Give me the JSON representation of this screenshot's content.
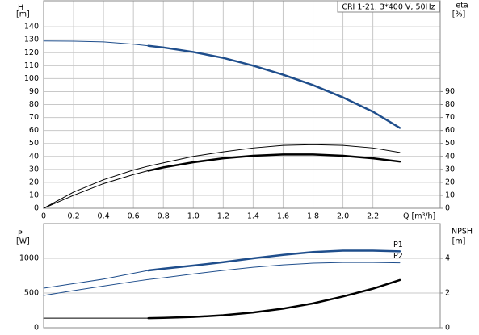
{
  "chart_data": [
    {
      "type": "line",
      "title": "CRI 1-21, 3*400 V, 50Hz",
      "y_label": "H",
      "y_unit": "[m]",
      "y2_label": "eta",
      "y2_unit": "[%]",
      "x_label": "Q [m³/h]",
      "x": [
        0,
        0.2,
        0.4,
        0.6,
        0.7,
        0.8,
        1.0,
        1.2,
        1.4,
        1.6,
        1.8,
        2.0,
        2.2,
        2.38
      ],
      "xlim": [
        0,
        2.65
      ],
      "xticks": [
        0,
        0.2,
        0.4,
        0.6,
        0.8,
        {
          "value": 1,
          "label": "1.0"
        },
        1.2,
        1.4,
        1.6,
        1.8,
        {
          "value": 2,
          "label": "2.0"
        },
        2.2
      ],
      "ylim": [
        0,
        160
      ],
      "yticks": [
        0,
        10,
        20,
        30,
        40,
        50,
        60,
        70,
        80,
        90,
        100,
        110,
        120,
        130,
        140
      ],
      "y2lim": [
        0,
        160
      ],
      "y2ticks": [
        0,
        10,
        20,
        30,
        40,
        50,
        60,
        70,
        80,
        90
      ],
      "grid": true,
      "series": [
        {
          "color": "#1f4e8c",
          "line_width": 1,
          "values": [
            129,
            128.9,
            128.3,
            126.5,
            125.3,
            null,
            null,
            null,
            null,
            null,
            null,
            null,
            null,
            null
          ]
        },
        {
          "color": "#1f4e8c",
          "line_width": 2.5,
          "values": [
            null,
            null,
            null,
            null,
            125.3,
            124,
            120.5,
            116,
            110,
            103,
            95,
            85.5,
            74.5,
            62
          ]
        },
        {
          "color": "#000000",
          "line_width": 1,
          "axis": "y2",
          "values": [
            0,
            12.5,
            22,
            29.5,
            32.5,
            35,
            40,
            43.5,
            46.5,
            48.5,
            49,
            48.5,
            46.5,
            43
          ]
        },
        {
          "color": "#000000",
          "line_width": 1,
          "axis": "y2",
          "values": [
            0,
            10,
            19,
            26,
            29,
            null,
            null,
            null,
            null,
            null,
            null,
            null,
            null,
            null
          ]
        },
        {
          "color": "#000000",
          "line_width": 2.5,
          "axis": "y2",
          "values": [
            null,
            null,
            null,
            null,
            29,
            31.5,
            35.5,
            38.5,
            40.5,
            41.5,
            41.5,
            40.5,
            38.5,
            36
          ]
        }
      ]
    },
    {
      "type": "line",
      "y_label": "P",
      "y_unit": "[W]",
      "y2_label": "NPSH",
      "y2_unit": "[m]",
      "x": [
        0,
        0.2,
        0.4,
        0.6,
        0.7,
        0.8,
        1.0,
        1.2,
        1.4,
        1.6,
        1.8,
        2.0,
        2.2,
        2.38
      ],
      "xlim": [
        0,
        2.65
      ],
      "ylim": [
        0,
        1500
      ],
      "yticks": [
        0,
        500,
        1000
      ],
      "y2lim": [
        0,
        6
      ],
      "y2ticks": [
        0,
        2,
        4
      ],
      "grid": true,
      "series": [
        {
          "color": "#1f4e8c",
          "line_width": 1,
          "values": [
            570,
            635,
            700,
            785,
            825,
            null,
            null,
            null,
            null,
            null,
            null,
            null,
            null,
            null
          ]
        },
        {
          "name": "P1",
          "color": "#1f4e8c",
          "line_width": 2.5,
          "values": [
            null,
            null,
            null,
            null,
            825,
            850,
            895,
            945,
            1000,
            1050,
            1090,
            1110,
            1110,
            1100
          ]
        },
        {
          "name": "P2",
          "color": "#1f4e8c",
          "line_width": 1,
          "values": [
            465,
            535,
            600,
            665,
            695,
            720,
            775,
            825,
            870,
            905,
            930,
            940,
            940,
            935
          ]
        },
        {
          "color": "#000000",
          "line_width": 1,
          "axis": "y2",
          "values": [
            0.55,
            0.55,
            0.55,
            0.55,
            0.55,
            null,
            null,
            null,
            null,
            null,
            null,
            null,
            null,
            null
          ]
        },
        {
          "color": "#000000",
          "line_width": 2.5,
          "axis": "y2",
          "values": [
            null,
            null,
            null,
            null,
            0.55,
            0.57,
            0.62,
            0.72,
            0.88,
            1.1,
            1.4,
            1.8,
            2.25,
            2.75
          ]
        }
      ]
    }
  ]
}
